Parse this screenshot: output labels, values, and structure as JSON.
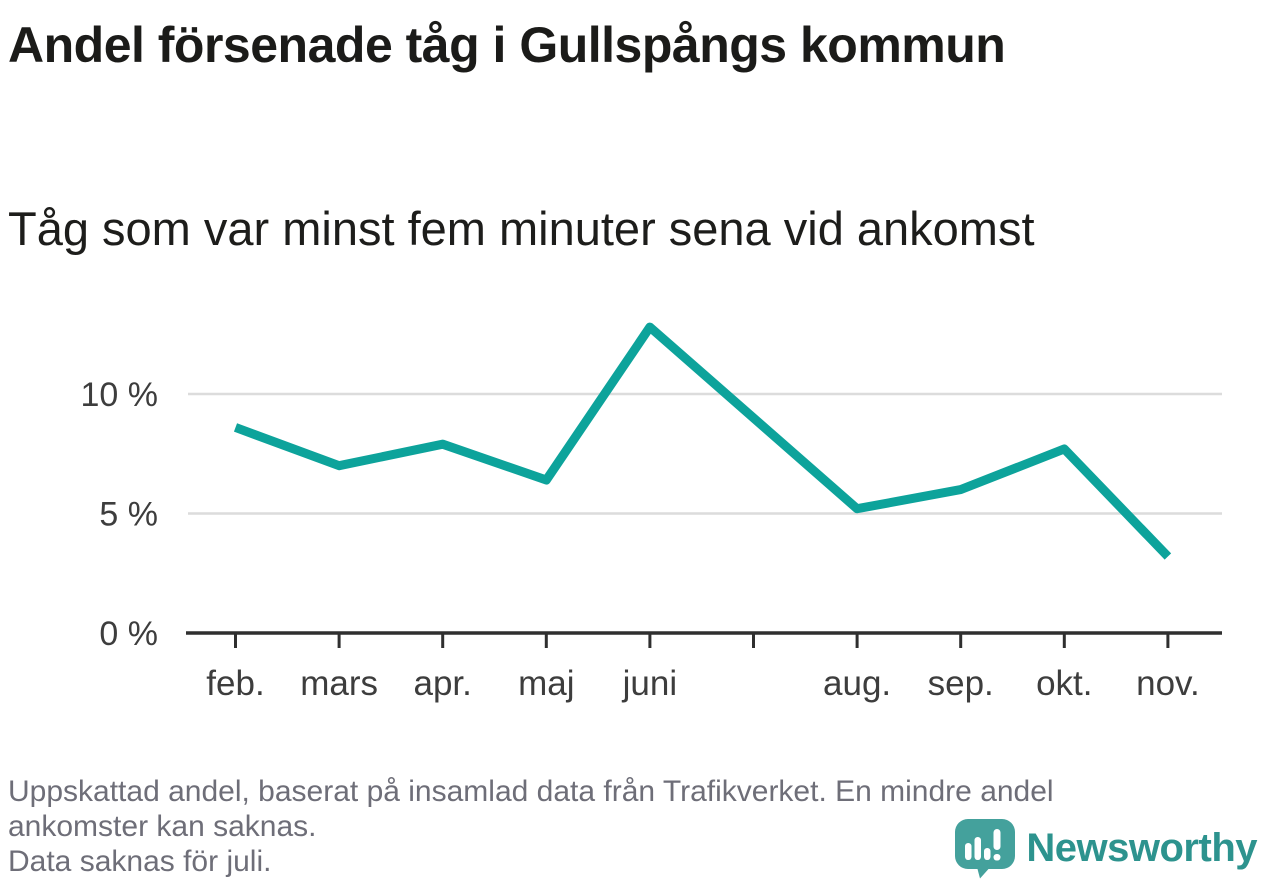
{
  "header": {
    "title": "Andel försenade tåg i Gullspångs kommun",
    "subtitle": "Tåg som var minst fem minuter sena vid ankomst"
  },
  "chart_data": {
    "type": "line",
    "title": "Andel försenade tåg i Gullspångs kommun",
    "subtitle": "Tåg som var minst fem minuter sena vid ankomst",
    "x_labels": [
      "feb.",
      "mars",
      "apr.",
      "maj",
      "juni",
      "",
      "aug.",
      "sep.",
      "okt.",
      "nov."
    ],
    "series": [
      {
        "name": "Andel försenade tåg (%)",
        "values": [
          8.6,
          7.0,
          7.9,
          6.4,
          12.8,
          null,
          5.2,
          6.0,
          7.7,
          3.2
        ],
        "color": "#0da39b"
      }
    ],
    "missing_categories": [
      "juli"
    ],
    "ylim": [
      0,
      15.2
    ],
    "yticks": [
      {
        "value": 0,
        "label": "0 %"
      },
      {
        "value": 5,
        "label": "5 %"
      },
      {
        "value": 10,
        "label": "10 %"
      }
    ],
    "grid": "horizontal",
    "legend": "none"
  },
  "footnote": {
    "lines": [
      "Uppskattad andel, baserat på insamlad data från Trafikverket. En mindre andel",
      "ankomster kan saknas.",
      "Data saknas för juli."
    ]
  },
  "branding": {
    "logo_text": "Newsworthy",
    "logo_icon": "speech-bubble-bar-chart-icon"
  },
  "colors": {
    "line": "#0da39b",
    "grid": "#dcdcdc",
    "axis": "#2f2f2f",
    "tick_text": "#3d3d3d",
    "logo_bubble": "#44a19c",
    "logo_text": "#2d938e"
  }
}
